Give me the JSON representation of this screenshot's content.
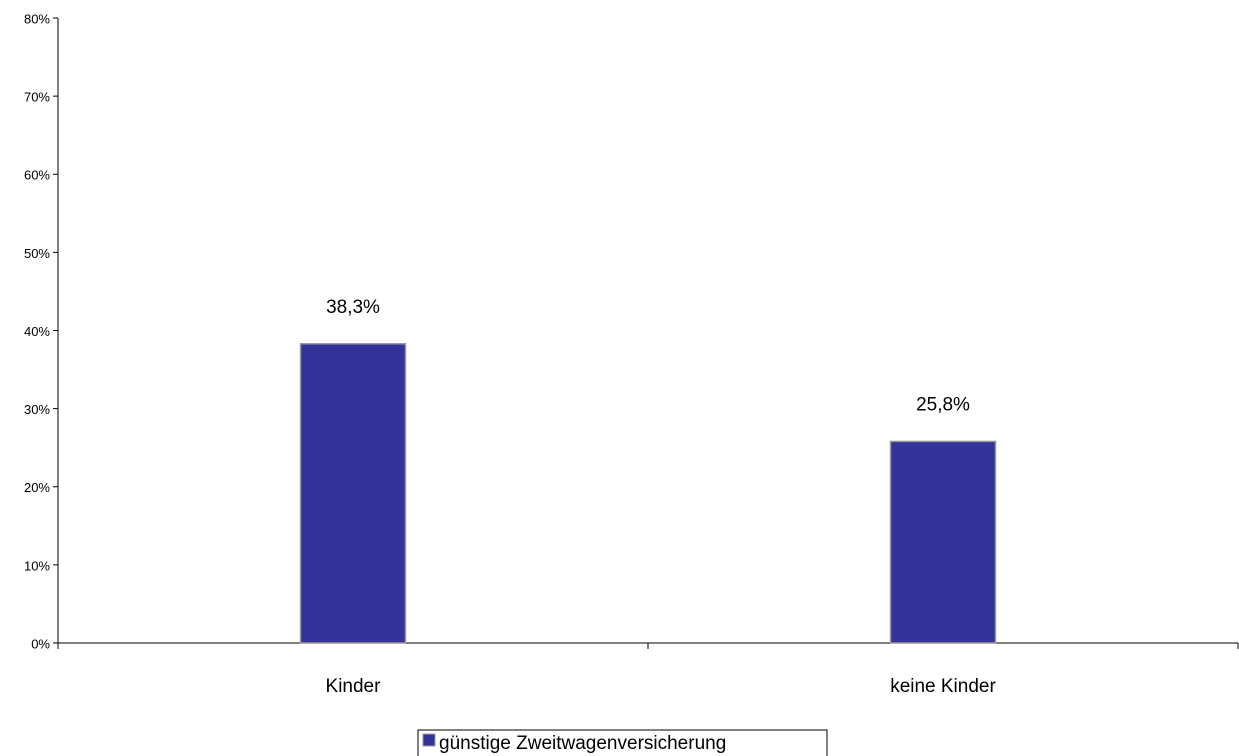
{
  "chart_data": {
    "type": "bar",
    "categories": [
      "Kinder",
      "keine Kinder"
    ],
    "series": [
      {
        "name": "günstige Zweitwagenversicherung",
        "color": "#333399",
        "values": [
          38.3,
          25.8
        ],
        "value_labels": [
          "38,3%",
          "25,8%"
        ]
      }
    ],
    "ylim": [
      0,
      80
    ],
    "yticks": [
      {
        "value": 0,
        "label": "0%"
      },
      {
        "value": 10,
        "label": "10%"
      },
      {
        "value": 20,
        "label": "20%"
      },
      {
        "value": 30,
        "label": "30%"
      },
      {
        "value": 40,
        "label": "40%"
      },
      {
        "value": 50,
        "label": "50%"
      },
      {
        "value": 60,
        "label": "60%"
      },
      {
        "value": 70,
        "label": "70%"
      },
      {
        "value": 80,
        "label": "80%"
      }
    ],
    "grid": false,
    "legend": "bottom"
  }
}
